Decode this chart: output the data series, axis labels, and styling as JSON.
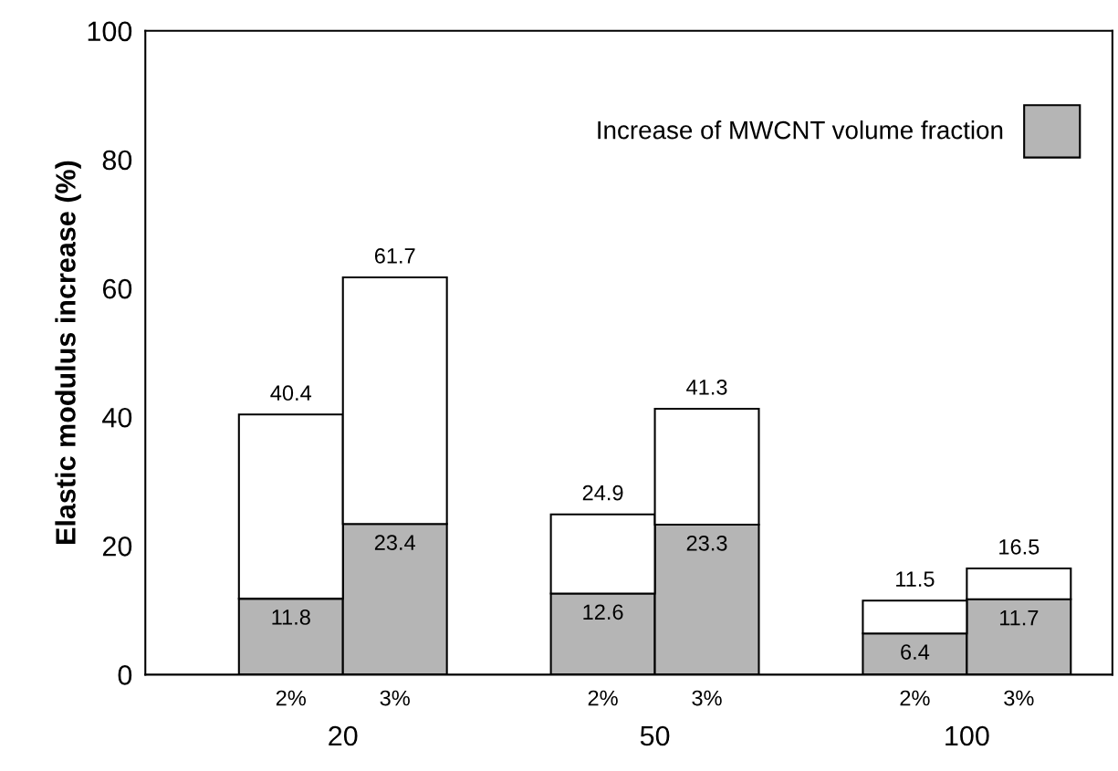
{
  "chart_data": {
    "type": "bar",
    "stacked": true,
    "ylabel": "Elastic modulus increase (%)",
    "categories": [
      "2%",
      "3%",
      null,
      "2%",
      "3%",
      null,
      "2%",
      "3%"
    ],
    "series": [
      {
        "name": "Increase of MWCNT volume fraction",
        "color": "#b5b5b5",
        "values": [
          11.8,
          23.4,
          null,
          12.6,
          23.3,
          null,
          6.4,
          11.7
        ],
        "value_labels": [
          "11.8",
          "23.4",
          null,
          "12.6",
          "23.3",
          null,
          "6.4",
          "11.7"
        ]
      },
      {
        "color": "#ffffff",
        "values": [
          28.6,
          38.3,
          null,
          12.3,
          18.0,
          null,
          5.1,
          4.8
        ]
      }
    ],
    "totals": [
      "40.4",
      "61.7",
      null,
      "24.9",
      "41.3",
      null,
      "11.5",
      "16.5"
    ],
    "annotations": [
      "20",
      "50",
      "100"
    ],
    "ylim": [
      0,
      100
    ],
    "yticks": [
      0,
      20,
      40,
      60,
      80,
      100
    ],
    "grid": false,
    "legend": "top right"
  }
}
